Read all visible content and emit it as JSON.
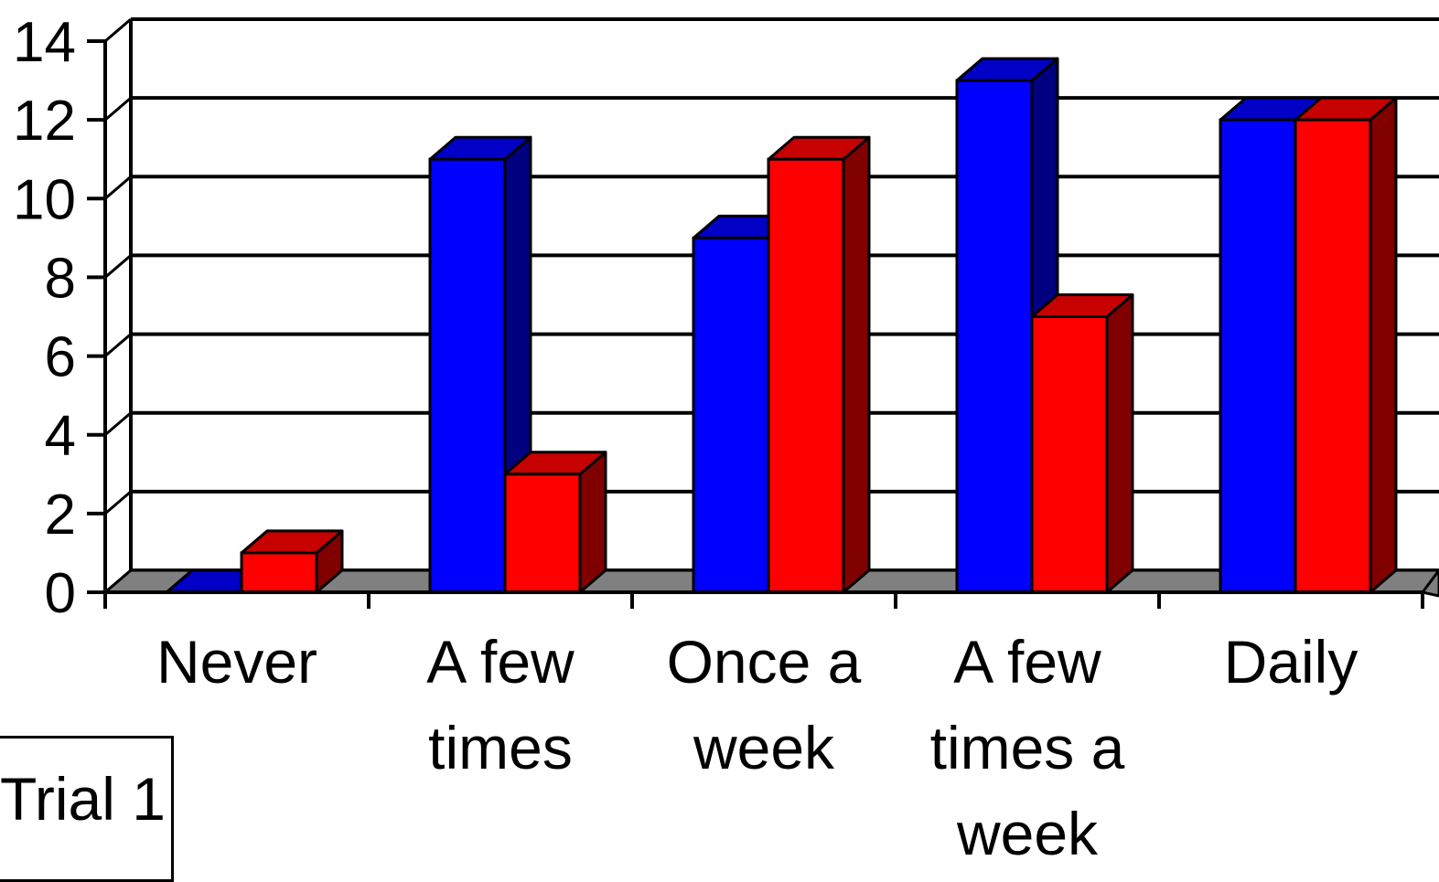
{
  "chart_data": {
    "type": "bar",
    "categories": [
      "Never",
      "A few times",
      "Once a week",
      "A few times a week",
      "Daily"
    ],
    "category_lines": [
      [
        "Never"
      ],
      [
        "A few",
        "times"
      ],
      [
        "Once a",
        "week"
      ],
      [
        "A few",
        "times a",
        "week"
      ],
      [
        "Daily"
      ]
    ],
    "series": [
      {
        "values": [
          0,
          11,
          9,
          13,
          12
        ],
        "color": "#0000ff"
      },
      {
        "values": [
          1,
          3,
          11,
          7,
          12
        ],
        "color": "#ff0000"
      }
    ],
    "ylim": [
      0,
      14
    ],
    "yticks": [
      0,
      2,
      4,
      6,
      8,
      10,
      12,
      14
    ],
    "grid": true,
    "legend": {
      "visible_entry": "Trial 1",
      "placement": "bottom-left"
    },
    "floor_color": "#808080"
  }
}
